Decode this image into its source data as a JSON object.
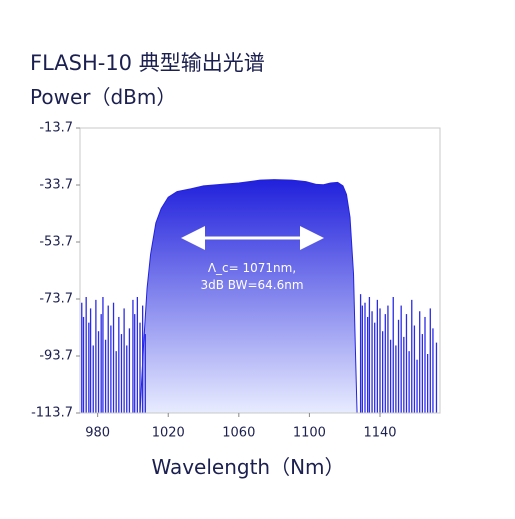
{
  "chart_data": {
    "type": "area",
    "title": "FLASH-10 典型输出光谱",
    "y_label": "Power（dBm）",
    "x_label": "Wavelength（Nm）",
    "xlim": [
      970,
      1174
    ],
    "ylim": [
      -113.7,
      -13.7
    ],
    "xticks": [
      980,
      1020,
      1060,
      1100,
      1140
    ],
    "yticks": [
      -113.7,
      -93.7,
      -73.7,
      -53.7,
      -33.7,
      -13.7
    ],
    "annotations": [
      "Λ_c= 1071nm,",
      "3dB BW=64.6nm"
    ],
    "series": [
      {
        "type": "area",
        "color": "#2323e0",
        "x": [
          1004,
          1006,
          1008,
          1010,
          1013,
          1016,
          1020,
          1025,
          1033,
          1040,
          1050,
          1060,
          1072,
          1080,
          1090,
          1098,
          1104,
          1108,
          1112,
          1116,
          1119,
          1121,
          1123,
          1125,
          1126,
          1127
        ],
        "values": [
          -113.7,
          -90,
          -70,
          -58,
          -47,
          -42,
          -38,
          -36,
          -35,
          -34,
          -33.5,
          -33,
          -32,
          -31.8,
          -32,
          -32.5,
          -33.5,
          -33.6,
          -33,
          -32.8,
          -34,
          -37,
          -45,
          -65,
          -90,
          -113.7
        ]
      },
      {
        "type": "stem",
        "color": "#2a2ae8",
        "x": [
          971,
          972,
          973.5,
          975,
          976,
          977.5,
          979,
          980.5,
          982,
          983,
          984.5,
          986,
          987.5,
          989,
          990.5,
          992,
          993.5,
          995,
          996.5,
          998,
          1000,
          1001,
          1002.5,
          1004,
          1005.5,
          1007,
          1129,
          1130,
          1131.5,
          1133,
          1134,
          1135.5,
          1137,
          1138.5,
          1140,
          1141.5,
          1143,
          1144.5,
          1146,
          1147.5,
          1149,
          1150.5,
          1152,
          1153.5,
          1155,
          1156.5,
          1158,
          1159.5,
          1161,
          1162.5,
          1164,
          1165.5,
          1167,
          1168.5,
          1170,
          1172
        ],
        "values": [
          -75,
          -80,
          -73,
          -82,
          -77,
          -90,
          -74,
          -85,
          -79,
          -73,
          -88,
          -76,
          -83,
          -75,
          -92,
          -80,
          -86,
          -77,
          -90,
          -84,
          -74,
          -79,
          -73,
          -82,
          -76,
          -86,
          -72,
          -76,
          -75,
          -80,
          -73,
          -78,
          -82,
          -74,
          -77,
          -85,
          -79,
          -76,
          -88,
          -73,
          -90,
          -81,
          -76,
          -87,
          -79,
          -92,
          -74,
          -83,
          -95,
          -78,
          -86,
          -80,
          -93,
          -77,
          -84,
          -89
        ]
      }
    ]
  }
}
